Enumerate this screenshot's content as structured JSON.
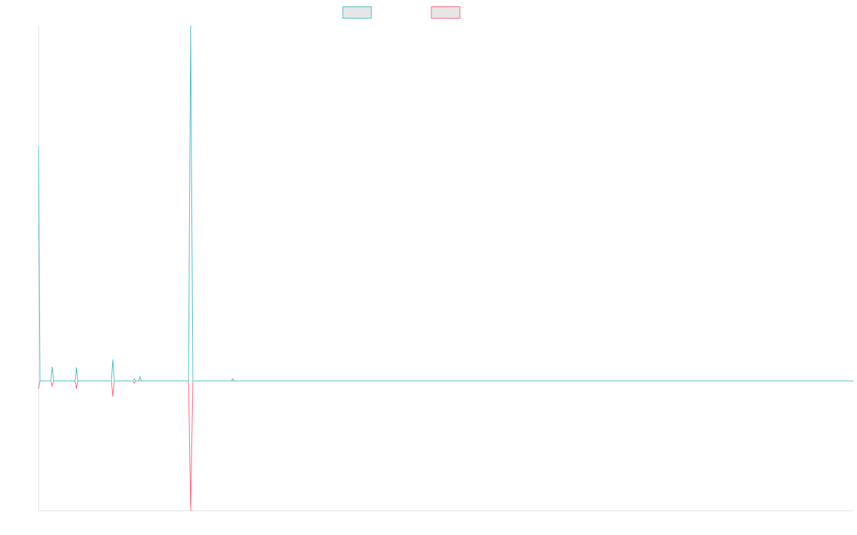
{
  "chart_data": {
    "type": "line",
    "x": [
      0,
      2,
      17,
      19,
      21,
      51,
      53,
      55,
      102,
      104,
      106,
      132,
      134,
      136,
      140,
      142,
      144,
      210,
      213,
      216,
      270,
      272,
      274,
      1141
    ],
    "series": [
      {
        "color": "#ff6384",
        "values": [
          -11,
          0,
          0,
          -7,
          0,
          0,
          -11,
          0,
          0,
          -22,
          0,
          0,
          -3,
          0,
          0,
          0,
          0,
          0,
          -182,
          0,
          0,
          0,
          0,
          0
        ]
      },
      {
        "color": "#4bc0c0",
        "values": [
          329,
          0,
          0,
          20,
          0,
          0,
          19,
          0,
          0,
          30,
          0,
          0,
          3,
          0,
          0,
          6,
          0,
          0,
          498,
          0,
          0,
          3,
          0,
          0
        ]
      }
    ],
    "xlim": [
      0,
      1141
    ],
    "ylim": [
      -182,
      498
    ]
  }
}
